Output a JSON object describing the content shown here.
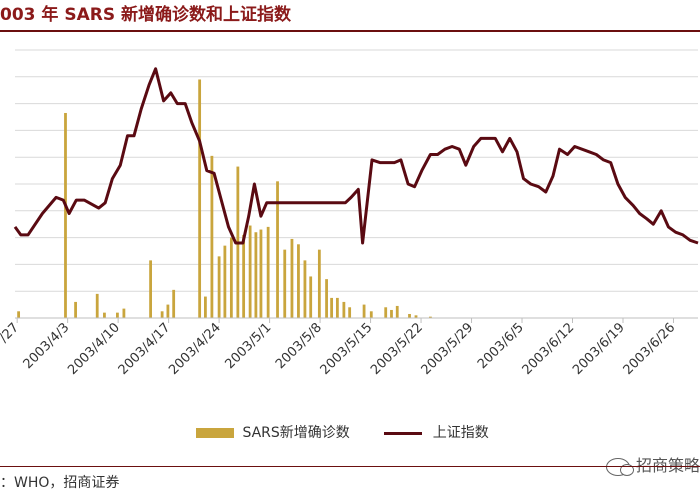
{
  "title": "003 年 SARS 新增确诊数和上证指数",
  "source": "：WHO，招商证券",
  "watermark": "招商策略",
  "colors": {
    "bars": "#c9a53d",
    "line": "#5a0a12",
    "title": "#8b1a1a",
    "rule": "#6b0f0f"
  },
  "chart_data": {
    "type": "bar+line",
    "title": "003 年 SARS 新增确诊数和上证指数",
    "x_ticks": [
      "/27",
      "2003/4/3",
      "2003/4/10",
      "2003/4/17",
      "2003/4/24",
      "2003/5/1",
      "2003/5/8",
      "2003/5/15",
      "2003/5/22",
      "2003/5/29",
      "2003/6/5",
      "2003/6/12",
      "2003/6/19",
      "2003/6/26"
    ],
    "x_day_range": [
      -0.3,
      94.4
    ],
    "left_ylim": [
      0,
      200
    ],
    "right_ylim": [
      0,
      100
    ],
    "grid": "horizontal",
    "legend": "bottom",
    "series": [
      {
        "name": "SARS新增确诊数",
        "kind": "bar",
        "axis": "left",
        "points": [
          [
            0.2,
            5
          ],
          [
            6.7,
            153
          ],
          [
            8.1,
            12
          ],
          [
            11.1,
            18
          ],
          [
            12.1,
            4
          ],
          [
            13.9,
            4
          ],
          [
            14.8,
            7
          ],
          [
            18.5,
            43
          ],
          [
            20.1,
            5
          ],
          [
            20.9,
            10
          ],
          [
            21.7,
            21
          ],
          [
            25.3,
            178
          ],
          [
            26.1,
            16
          ],
          [
            27.0,
            121
          ],
          [
            28.0,
            46
          ],
          [
            28.8,
            54
          ],
          [
            29.7,
            60
          ],
          [
            30.6,
            113
          ],
          [
            31.4,
            62
          ],
          [
            32.3,
            69
          ],
          [
            33.1,
            64
          ],
          [
            33.8,
            66
          ],
          [
            34.8,
            68
          ],
          [
            36.1,
            102
          ],
          [
            37.1,
            51
          ],
          [
            38.1,
            59
          ],
          [
            39.0,
            55
          ],
          [
            39.9,
            43
          ],
          [
            40.7,
            31
          ],
          [
            41.9,
            51
          ],
          [
            42.9,
            29
          ],
          [
            43.6,
            15
          ],
          [
            44.4,
            15
          ],
          [
            45.3,
            12
          ],
          [
            46.1,
            8
          ],
          [
            48.1,
            10
          ],
          [
            49.1,
            5
          ],
          [
            51.1,
            8
          ],
          [
            51.9,
            6
          ],
          [
            52.7,
            9
          ],
          [
            54.4,
            3
          ],
          [
            55.3,
            2
          ],
          [
            57.3,
            1
          ]
        ]
      },
      {
        "name": "上证指数",
        "kind": "line",
        "axis": "right",
        "points": [
          [
            -0.3,
            34
          ],
          [
            0.5,
            31
          ],
          [
            1.5,
            31
          ],
          [
            3.5,
            39
          ],
          [
            5.4,
            45
          ],
          [
            6.4,
            44
          ],
          [
            7.2,
            39
          ],
          [
            8.2,
            44
          ],
          [
            9.3,
            44
          ],
          [
            11.3,
            41
          ],
          [
            12.2,
            43
          ],
          [
            13.2,
            52
          ],
          [
            14.3,
            57
          ],
          [
            15.3,
            68
          ],
          [
            16.2,
            68
          ],
          [
            17.2,
            78
          ],
          [
            18.3,
            87
          ],
          [
            19.2,
            93
          ],
          [
            20.3,
            81
          ],
          [
            21.3,
            84
          ],
          [
            22.2,
            80
          ],
          [
            23.3,
            80
          ],
          [
            24.2,
            73
          ],
          [
            25.3,
            66
          ],
          [
            26.3,
            55
          ],
          [
            27.3,
            54
          ],
          [
            28.3,
            44
          ],
          [
            29.3,
            34
          ],
          [
            30.3,
            28
          ],
          [
            31.3,
            28
          ],
          [
            32.1,
            38
          ],
          [
            32.9,
            50
          ],
          [
            33.8,
            38
          ],
          [
            34.6,
            43
          ],
          [
            45.5,
            43
          ],
          [
            46.3,
            45
          ],
          [
            47.3,
            48
          ],
          [
            47.9,
            28
          ],
          [
            49.2,
            59
          ],
          [
            50.3,
            58
          ],
          [
            52.3,
            58
          ],
          [
            53.2,
            59
          ],
          [
            54.2,
            50
          ],
          [
            55.1,
            49
          ],
          [
            56.1,
            55
          ],
          [
            57.3,
            61
          ],
          [
            58.3,
            61
          ],
          [
            59.3,
            63
          ],
          [
            60.3,
            64
          ],
          [
            61.3,
            63
          ],
          [
            62.2,
            57
          ],
          [
            63.3,
            64
          ],
          [
            64.3,
            67
          ],
          [
            65.3,
            67
          ],
          [
            66.3,
            67
          ],
          [
            67.3,
            62
          ],
          [
            68.3,
            67
          ],
          [
            69.3,
            62
          ],
          [
            70.2,
            52
          ],
          [
            71.2,
            50
          ],
          [
            72.3,
            49
          ],
          [
            73.3,
            47
          ],
          [
            74.3,
            53
          ],
          [
            75.2,
            63
          ],
          [
            76.3,
            61
          ],
          [
            77.3,
            64
          ],
          [
            79.3,
            62
          ],
          [
            80.3,
            61
          ],
          [
            81.3,
            59
          ],
          [
            82.3,
            58
          ],
          [
            83.3,
            50
          ],
          [
            84.3,
            45
          ],
          [
            85.4,
            42
          ],
          [
            86.3,
            39
          ],
          [
            87.3,
            37
          ],
          [
            88.2,
            35
          ],
          [
            89.3,
            40
          ],
          [
            90.3,
            34
          ],
          [
            91.3,
            32
          ],
          [
            92.3,
            31
          ],
          [
            93.3,
            29
          ],
          [
            94.4,
            28
          ]
        ]
      }
    ]
  }
}
